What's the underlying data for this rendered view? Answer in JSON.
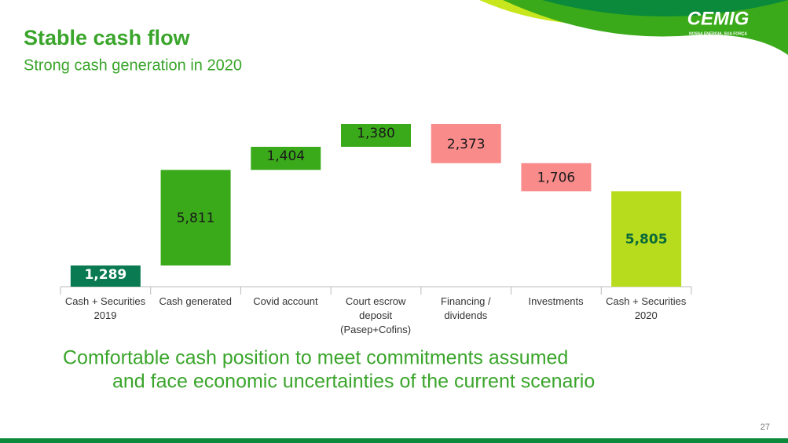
{
  "header": {
    "title": "Stable cash flow",
    "subtitle": "Strong cash generation in 2020",
    "logo": "CEMIG",
    "tagline": "NOSSA ENERGIA, SUA FORÇA"
  },
  "chart_data": {
    "type": "waterfall",
    "categories": [
      "Cash + Securities\n2019",
      "Cash generated",
      "Covid account",
      "Court escrow\ndeposit\n(Pasep+Cofins)",
      "Financing /\ndividends",
      "Investments",
      "Cash + Securities\n2020"
    ],
    "values": [
      1289,
      5811,
      1404,
      1380,
      -2373,
      -1706,
      5805
    ],
    "value_labels": [
      "1,289",
      "5,811",
      "1,404",
      "1,380",
      "2,373",
      "1,706",
      "5,805"
    ],
    "measures": [
      "absolute",
      "relative",
      "relative",
      "relative",
      "relative",
      "relative",
      "total"
    ],
    "colors": [
      "#0a7a52",
      "#3aaa1a",
      "#3aaa1a",
      "#3aaa1a",
      "#f98b8b",
      "#f98b8b",
      "#b7dc1d"
    ],
    "value_label_colors": [
      "#ffffff",
      "#1a1a1a",
      "#1a1a1a",
      "#1a1a1a",
      "#1a1a1a",
      "#1a1a1a",
      "#0a6a3a"
    ]
  },
  "footnote": [
    "Comfortable cash position to meet commitments assumed",
    "and face economic uncertainties of the current scenario"
  ],
  "page_number": "27"
}
